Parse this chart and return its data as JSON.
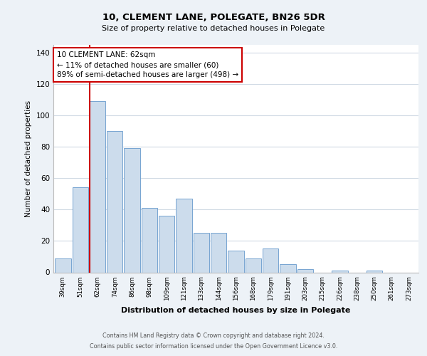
{
  "title": "10, CLEMENT LANE, POLEGATE, BN26 5DR",
  "subtitle": "Size of property relative to detached houses in Polegate",
  "xlabel": "Distribution of detached houses by size in Polegate",
  "ylabel": "Number of detached properties",
  "bar_labels": [
    "39sqm",
    "51sqm",
    "62sqm",
    "74sqm",
    "86sqm",
    "98sqm",
    "109sqm",
    "121sqm",
    "133sqm",
    "144sqm",
    "156sqm",
    "168sqm",
    "179sqm",
    "191sqm",
    "203sqm",
    "215sqm",
    "226sqm",
    "238sqm",
    "250sqm",
    "261sqm",
    "273sqm"
  ],
  "bar_values": [
    9,
    54,
    109,
    90,
    79,
    41,
    36,
    47,
    25,
    25,
    14,
    9,
    15,
    5,
    2,
    0,
    1,
    0,
    1,
    0,
    0
  ],
  "highlight_index": 2,
  "bar_color": "#ccdcec",
  "bar_edge_color": "#6699cc",
  "highlight_line_color": "#cc0000",
  "annotation_text": "10 CLEMENT LANE: 62sqm\n← 11% of detached houses are smaller (60)\n89% of semi-detached houses are larger (498) →",
  "annotation_box_facecolor": "#ffffff",
  "annotation_box_edgecolor": "#cc0000",
  "ylim": [
    0,
    145
  ],
  "yticks": [
    0,
    20,
    40,
    60,
    80,
    100,
    120,
    140
  ],
  "footer1": "Contains HM Land Registry data © Crown copyright and database right 2024.",
  "footer2": "Contains public sector information licensed under the Open Government Licence v3.0.",
  "bg_color": "#edf2f7",
  "plot_bg_color": "#ffffff",
  "grid_color": "#d0dae4"
}
